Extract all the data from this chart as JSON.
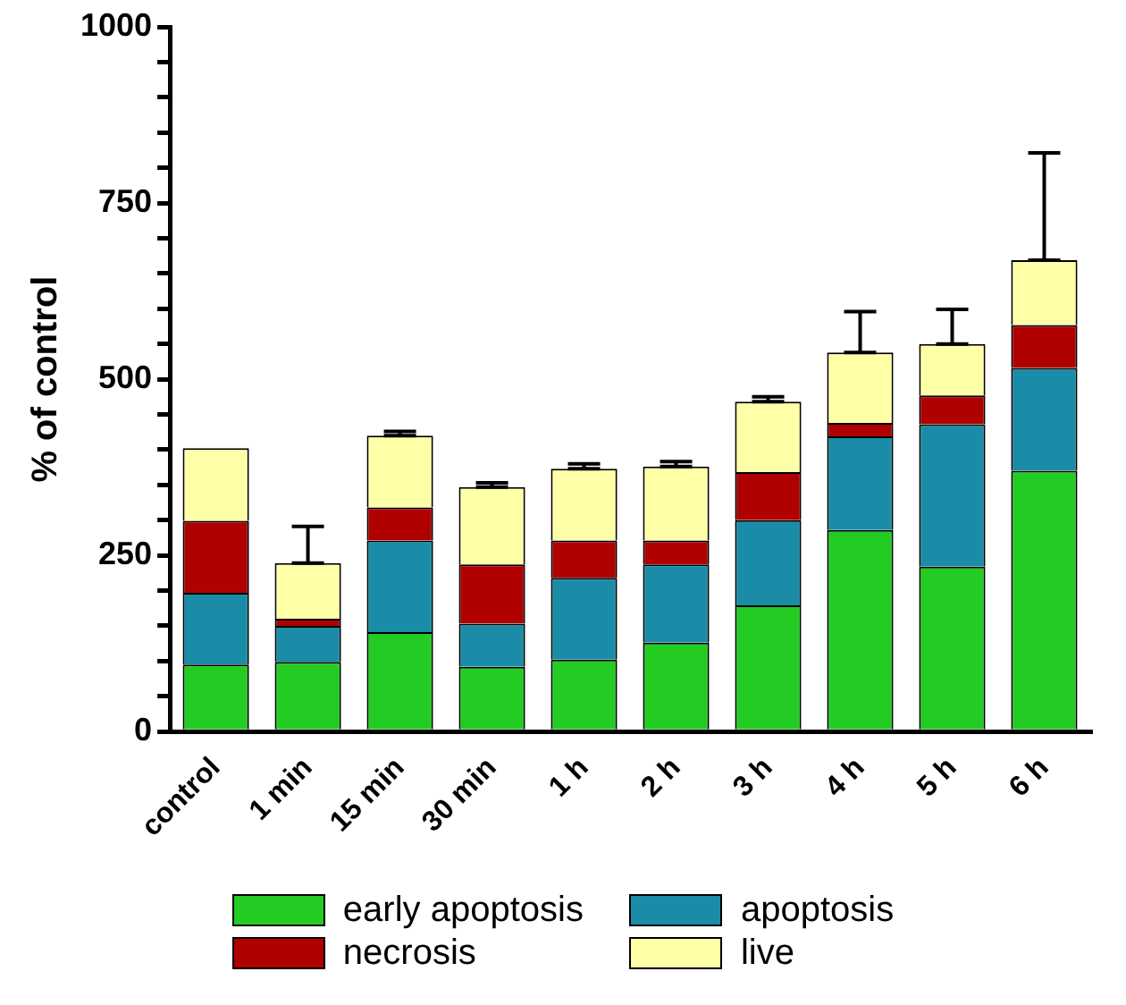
{
  "chart_data": {
    "type": "bar",
    "stacked": true,
    "ylabel": "% of control",
    "categories": [
      "control",
      "1 min",
      "15 min",
      "30 min",
      "1 h",
      "2 h",
      "3 h",
      "4 h",
      "5 h",
      "6 h"
    ],
    "series": [
      {
        "name": "early apoptosis",
        "color": "#22cc22",
        "values": [
          95,
          99,
          141,
          92,
          102,
          126,
          179,
          286,
          234,
          370
        ]
      },
      {
        "name": "apoptosis",
        "color": "#1a8ca8",
        "values": [
          102,
          51,
          130,
          61,
          116,
          111,
          121,
          133,
          202,
          146
        ]
      },
      {
        "name": "necrosis",
        "color": "#b00000",
        "values": [
          102,
          10,
          47,
          84,
          53,
          34,
          68,
          19,
          41,
          61
        ]
      },
      {
        "name": "live",
        "color": "#ffffa8",
        "values": [
          103,
          79,
          102,
          110,
          102,
          105,
          100,
          100,
          73,
          92
        ],
        "errors": [
          null,
          [
            239,
            291
          ],
          [
            420,
            426
          ],
          [
            347,
            353
          ],
          [
            373,
            380
          ],
          [
            376,
            383
          ],
          [
            468,
            475
          ],
          [
            538,
            596
          ],
          [
            550,
            599
          ],
          [
            669,
            821
          ]
        ]
      }
    ],
    "ylim": [
      0,
      1000
    ],
    "yticks": [
      0,
      {
        "value": 50,
        "label": null
      },
      {
        "value": 100,
        "label": null
      },
      {
        "value": 150,
        "label": null
      },
      {
        "value": 200,
        "label": null
      },
      250,
      {
        "value": 300,
        "label": null
      },
      {
        "value": 350,
        "label": null
      },
      {
        "value": 400,
        "label": null
      },
      {
        "value": 450,
        "label": null
      },
      500,
      {
        "value": 550,
        "label": null
      },
      {
        "value": 600,
        "label": null
      },
      {
        "value": 650,
        "label": null
      },
      {
        "value": 700,
        "label": null
      },
      750,
      {
        "value": 800,
        "label": null
      },
      {
        "value": 850,
        "label": null
      },
      {
        "value": 900,
        "label": null
      },
      {
        "value": 950,
        "label": null
      },
      1000
    ],
    "grid": false,
    "legend": "bottom"
  }
}
